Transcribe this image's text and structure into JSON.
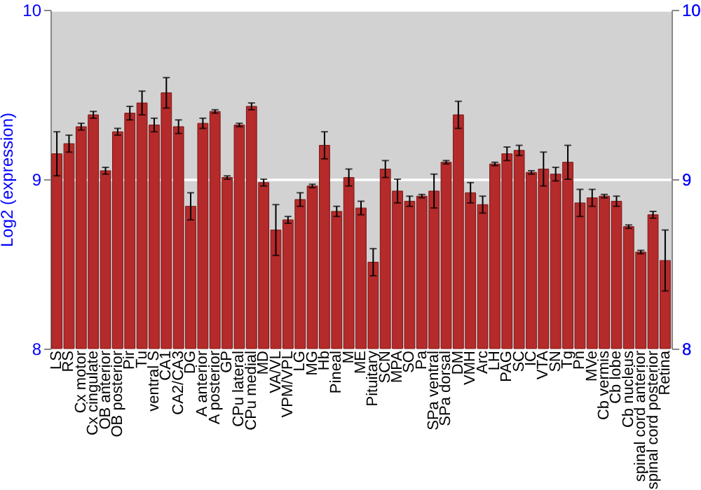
{
  "chart_data": {
    "type": "bar",
    "ylabel": "Log2 (expression)",
    "categories": [
      "LS",
      "RS",
      "Cx motor",
      "Cx cingulate",
      "OB anterior",
      "OB posterior",
      "Pir",
      "Tu",
      "ventral S",
      "CA1",
      "CA2/CA3",
      "DG",
      "A anterior",
      "A posterior",
      "GP",
      "CPu lateral",
      "CPu medial",
      "MD",
      "VA/VL",
      "VPM/VPL",
      "LG",
      "MG",
      "Hb",
      "Pineal",
      "M",
      "ME",
      "Pituitary",
      "SCN",
      "MPA",
      "SO",
      "Pa",
      "SPa ventral",
      "SPa dorsal",
      "DM",
      "VMH",
      "Arc",
      "LH",
      "PAG",
      "SC",
      "IC",
      "VTA",
      "SN",
      "Tg",
      "Pn",
      "MVe",
      "Cb vermis",
      "Cb lobe",
      "Cb nucleus",
      "spinal cord anterior",
      "spinal cord posterior",
      "Retina"
    ],
    "series": [
      {
        "color": "#b52a2a",
        "values": [
          9.15,
          9.21,
          9.31,
          9.38,
          9.05,
          9.28,
          9.39,
          9.45,
          9.32,
          9.51,
          9.31,
          8.84,
          9.33,
          9.4,
          9.01,
          9.32,
          9.43,
          8.98,
          8.7,
          8.76,
          8.88,
          8.96,
          9.2,
          8.81,
          9.01,
          8.83,
          8.51,
          9.06,
          8.93,
          8.87,
          8.9,
          8.93,
          9.1,
          9.38,
          8.92,
          8.85,
          9.09,
          9.15,
          9.17,
          9.04,
          9.06,
          9.03,
          9.1,
          8.86,
          8.89,
          8.9,
          8.87,
          8.72,
          8.57,
          8.79,
          8.52
        ],
        "errors": [
          0.13,
          0.05,
          0.02,
          0.02,
          0.02,
          0.02,
          0.04,
          0.07,
          0.04,
          0.09,
          0.04,
          0.08,
          0.03,
          0.01,
          0.01,
          0.01,
          0.02,
          0.02,
          0.15,
          0.02,
          0.04,
          0.01,
          0.08,
          0.03,
          0.05,
          0.04,
          0.08,
          0.05,
          0.07,
          0.03,
          0.01,
          0.1,
          0.01,
          0.08,
          0.06,
          0.05,
          0.01,
          0.04,
          0.03,
          0.01,
          0.1,
          0.04,
          0.1,
          0.08,
          0.05,
          0.01,
          0.03,
          0.01,
          0.01,
          0.02,
          0.18
        ]
      }
    ],
    "ylim": [
      8,
      10
    ],
    "yticks": [
      8,
      9,
      10
    ],
    "y2lim": [
      8,
      10
    ],
    "y2ticks": [
      8,
      9,
      10
    ],
    "grid": "y"
  }
}
